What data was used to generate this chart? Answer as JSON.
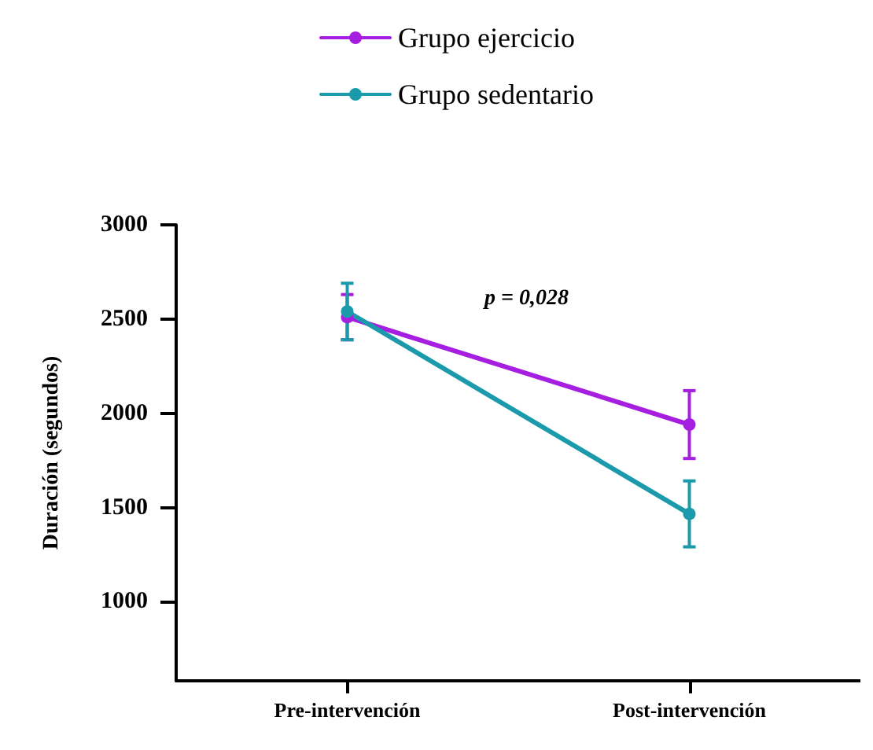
{
  "chart_data": {
    "type": "line",
    "ylabel": "Duración (segundos)",
    "categories": [
      "Pre-intervención",
      "Post-intervención"
    ],
    "series": [
      {
        "name": "Grupo ejercicio",
        "color": "#a61ee0",
        "values": [
          2510,
          1940
        ],
        "errors": [
          120,
          180
        ]
      },
      {
        "name": "Grupo sedentario",
        "color": "#1a9aaa",
        "values": [
          2540,
          1466
        ],
        "errors": [
          150,
          175
        ]
      }
    ],
    "ylim": [
      580,
      3000
    ],
    "yticks": [
      1000,
      1500,
      2000,
      2500,
      3000
    ],
    "annotations": [
      "p = 0,028"
    ],
    "legend": "top",
    "marker": "circle",
    "line_style": "solid",
    "grid": false
  }
}
